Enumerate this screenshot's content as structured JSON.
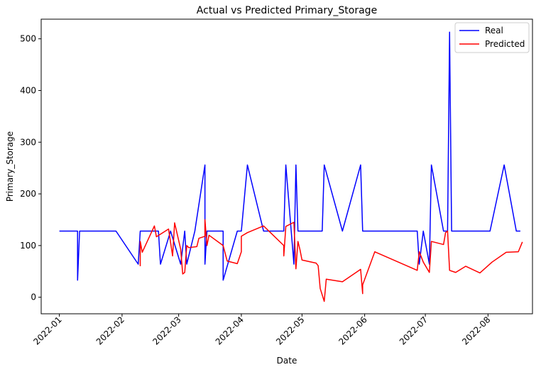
{
  "chart_data": {
    "type": "line",
    "title": "Actual vs Predicted Primary_Storage",
    "xlabel": "Date",
    "ylabel": "Primary_Storage",
    "x_axis": "date",
    "xlim": [
      "2021-12-23",
      "2022-08-23"
    ],
    "ylim": [
      -32,
      538
    ],
    "grid": false,
    "legend_position": "upper-right",
    "x_ticks": [
      "2022-01",
      "2022-02",
      "2022-03",
      "2022-04",
      "2022-05",
      "2022-06",
      "2022-07",
      "2022-08"
    ],
    "y_ticks": [
      0,
      100,
      200,
      300,
      400,
      500
    ],
    "series": [
      {
        "name": "Real",
        "color": "#0000ff",
        "points": [
          [
            "2022-01-01",
            128
          ],
          [
            "2022-01-10",
            128
          ],
          [
            "2022-01-10",
            33
          ],
          [
            "2022-01-11",
            128
          ],
          [
            "2022-01-29",
            128
          ],
          [
            "2022-02-09",
            64
          ],
          [
            "2022-02-10",
            128
          ],
          [
            "2022-02-19",
            128
          ],
          [
            "2022-02-20",
            64
          ],
          [
            "2022-02-25",
            128
          ],
          [
            "2022-03-02",
            64
          ],
          [
            "2022-03-04",
            128
          ],
          [
            "2022-03-05",
            64
          ],
          [
            "2022-03-09",
            128
          ],
          [
            "2022-03-14",
            256
          ],
          [
            "2022-03-14",
            64
          ],
          [
            "2022-03-15",
            128
          ],
          [
            "2022-03-23",
            128
          ],
          [
            "2022-03-23",
            33
          ],
          [
            "2022-03-30",
            128
          ],
          [
            "2022-04-01",
            128
          ],
          [
            "2022-04-04",
            256
          ],
          [
            "2022-04-12",
            128
          ],
          [
            "2022-04-22",
            128
          ],
          [
            "2022-04-23",
            256
          ],
          [
            "2022-04-27",
            64
          ],
          [
            "2022-04-28",
            256
          ],
          [
            "2022-04-29",
            128
          ],
          [
            "2022-05-11",
            128
          ],
          [
            "2022-05-12",
            256
          ],
          [
            "2022-05-21",
            128
          ],
          [
            "2022-05-30",
            256
          ],
          [
            "2022-05-31",
            128
          ],
          [
            "2022-06-27",
            128
          ],
          [
            "2022-06-28",
            64
          ],
          [
            "2022-06-30",
            128
          ],
          [
            "2022-07-03",
            64
          ],
          [
            "2022-07-04",
            256
          ],
          [
            "2022-07-10",
            128
          ],
          [
            "2022-07-12",
            128
          ],
          [
            "2022-07-13",
            513
          ],
          [
            "2022-07-14",
            128
          ],
          [
            "2022-08-02",
            128
          ],
          [
            "2022-08-09",
            256
          ],
          [
            "2022-08-15",
            128
          ],
          [
            "2022-08-17",
            128
          ]
        ]
      },
      {
        "name": "Predicted",
        "color": "#ff0000",
        "points": [
          [
            "2022-02-10",
            60
          ],
          [
            "2022-02-10",
            108
          ],
          [
            "2022-02-11",
            87
          ],
          [
            "2022-02-17",
            138
          ],
          [
            "2022-02-18",
            117
          ],
          [
            "2022-02-24",
            132
          ],
          [
            "2022-02-26",
            80
          ],
          [
            "2022-02-27",
            144
          ],
          [
            "2022-03-02",
            93
          ],
          [
            "2022-03-03",
            45
          ],
          [
            "2022-03-04",
            48
          ],
          [
            "2022-03-05",
            100
          ],
          [
            "2022-03-06",
            96
          ],
          [
            "2022-03-10",
            98
          ],
          [
            "2022-03-11",
            114
          ],
          [
            "2022-03-14",
            118
          ],
          [
            "2022-03-14",
            150
          ],
          [
            "2022-03-15",
            100
          ],
          [
            "2022-03-16",
            120
          ],
          [
            "2022-03-23",
            100
          ],
          [
            "2022-03-25",
            70
          ],
          [
            "2022-03-30",
            65
          ],
          [
            "2022-04-01",
            88
          ],
          [
            "2022-04-01",
            118
          ],
          [
            "2022-04-04",
            125
          ],
          [
            "2022-04-12",
            138
          ],
          [
            "2022-04-22",
            100
          ],
          [
            "2022-04-22",
            80
          ],
          [
            "2022-04-23",
            137
          ],
          [
            "2022-04-27",
            145
          ],
          [
            "2022-04-28",
            55
          ],
          [
            "2022-04-29",
            108
          ],
          [
            "2022-04-30",
            92
          ],
          [
            "2022-05-01",
            72
          ],
          [
            "2022-05-08",
            66
          ],
          [
            "2022-05-09",
            61
          ],
          [
            "2022-05-10",
            17
          ],
          [
            "2022-05-12",
            -8
          ],
          [
            "2022-05-13",
            35
          ],
          [
            "2022-05-21",
            30
          ],
          [
            "2022-05-30",
            54
          ],
          [
            "2022-05-31",
            7
          ],
          [
            "2022-05-31",
            24
          ],
          [
            "2022-06-06",
            88
          ],
          [
            "2022-06-27",
            52
          ],
          [
            "2022-06-28",
            88
          ],
          [
            "2022-06-30",
            68
          ],
          [
            "2022-07-03",
            48
          ],
          [
            "2022-07-04",
            108
          ],
          [
            "2022-07-10",
            102
          ],
          [
            "2022-07-11",
            125
          ],
          [
            "2022-07-12",
            128
          ],
          [
            "2022-07-13",
            52
          ],
          [
            "2022-07-16",
            48
          ],
          [
            "2022-07-21",
            60
          ],
          [
            "2022-07-28",
            47
          ],
          [
            "2022-08-03",
            68
          ],
          [
            "2022-08-10",
            87
          ],
          [
            "2022-08-16",
            88
          ],
          [
            "2022-08-18",
            107
          ]
        ]
      }
    ]
  }
}
